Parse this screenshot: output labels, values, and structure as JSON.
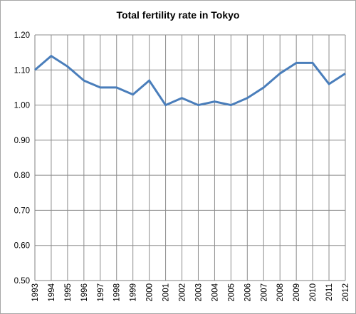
{
  "chart_data": {
    "type": "line",
    "title": "Total fertility rate in Tokyo",
    "xlabel": "",
    "ylabel": "",
    "x": [
      "1993",
      "1994",
      "1995",
      "1996",
      "1997",
      "1998",
      "1999",
      "2000",
      "2001",
      "2002",
      "2003",
      "2004",
      "2005",
      "2006",
      "2007",
      "2008",
      "2009",
      "2010",
      "2011",
      "2012"
    ],
    "series": [
      {
        "values": [
          1.1,
          1.14,
          1.11,
          1.07,
          1.05,
          1.05,
          1.03,
          1.07,
          1.0,
          1.02,
          1.0,
          1.01,
          1.0,
          1.02,
          1.05,
          1.09,
          1.12,
          1.12,
          1.06,
          1.09
        ]
      }
    ],
    "ylim": [
      0.5,
      1.2
    ],
    "yticks": [
      "0.50",
      "0.60",
      "0.70",
      "0.80",
      "0.90",
      "1.00",
      "1.10",
      "1.20"
    ],
    "grid": true,
    "legend": "none",
    "line_color": "#4a7ebb",
    "grid_color": "#8c8c8c"
  }
}
